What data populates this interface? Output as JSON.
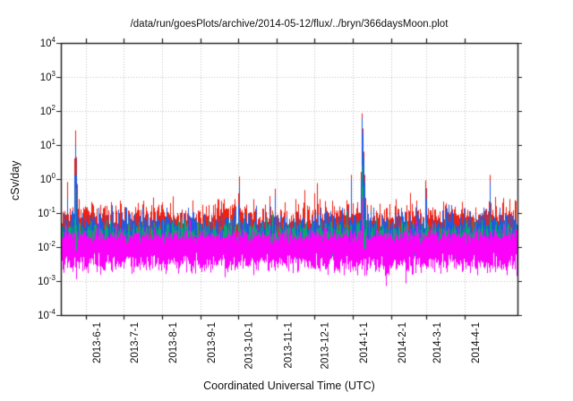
{
  "page": {
    "background": "#ffffff"
  },
  "chart_data": {
    "type": "line",
    "title": "/data/run/goesPlots/archive/2014-05-12/flux/../bryn/366daysMoon.plot",
    "xlabel": "Coordinated Universal Time (UTC)",
    "ylabel": "cSv/day",
    "background": "#ffffff",
    "border_color": "#1a1a1a",
    "grid": {
      "visible": true,
      "style": "dotted",
      "color": "#c2c2c2"
    },
    "legend": {
      "visible": false
    },
    "x_axis": {
      "start_date": "2013-05-12",
      "span_days": 366,
      "ticks": [
        {
          "label": "2013-6-1",
          "day": 20
        },
        {
          "label": "2013-7-1",
          "day": 50
        },
        {
          "label": "2013-8-1",
          "day": 81
        },
        {
          "label": "2013-9-1",
          "day": 112
        },
        {
          "label": "2013-10-1",
          "day": 142
        },
        {
          "label": "2013-11-1",
          "day": 173
        },
        {
          "label": "2013-12-1",
          "day": 203
        },
        {
          "label": "2014-1-1",
          "day": 234
        },
        {
          "label": "2014-2-1",
          "day": 265
        },
        {
          "label": "2014-3-1",
          "day": 293
        },
        {
          "label": "2014-4-1",
          "day": 324
        }
      ]
    },
    "y_axis": {
      "scale": "log10",
      "base": "10",
      "tick_exponents": [
        4,
        3,
        2,
        1,
        0,
        -1,
        -2,
        -3,
        -4
      ],
      "range_exponents": [
        -4,
        4
      ]
    },
    "series": [
      {
        "name": "red-flux",
        "color": "#ee2113",
        "baseline": {
          "top_log": -1.03,
          "top_sigma": 0.2,
          "burst_prob": 0.07,
          "burst_extra": 0.55,
          "bottom_log": -1.72,
          "bottom_sigma": 0.06
        },
        "spikes": [
          {
            "day": 5.0,
            "peak_log": -0.05,
            "rise": 1.6,
            "decay": 1.6
          },
          {
            "day": 11.2,
            "peak_log": 1.74,
            "rise": 2.6,
            "decay": 1.1
          },
          {
            "day": 40.0,
            "peak_log": -0.3,
            "rise": 2.5,
            "decay": 2.0
          },
          {
            "day": 142.5,
            "peak_log": 0.48,
            "rise": 2.2,
            "decay": 1.3
          },
          {
            "day": 167.0,
            "peak_log": -0.08,
            "rise": 2.5,
            "decay": 2.0
          },
          {
            "day": 171.5,
            "peak_log": -0.25,
            "rise": 2.5,
            "decay": 2.0
          },
          {
            "day": 176.0,
            "peak_log": -0.45,
            "rise": 2.5,
            "decay": 2.0
          },
          {
            "day": 214.0,
            "peak_log": -0.55,
            "rise": 3.0,
            "decay": 2.5
          },
          {
            "day": 232.5,
            "peak_log": 0.15,
            "rise": 2.5,
            "decay": 1.6
          },
          {
            "day": 241.2,
            "peak_log": 2.1,
            "rise": 2.4,
            "decay": 0.95
          },
          {
            "day": 285.0,
            "peak_log": -0.35,
            "rise": 3.0,
            "decay": 2.2
          },
          {
            "day": 292.3,
            "peak_log": 0.48,
            "rise": 2.4,
            "decay": 1.5
          },
          {
            "day": 322.0,
            "peak_log": -0.45,
            "rise": 3.0,
            "decay": 2.5
          },
          {
            "day": 343.5,
            "peak_log": 0.55,
            "rise": 2.6,
            "decay": 1.7
          }
        ]
      },
      {
        "name": "blue-flux",
        "color": "#1f5ae0",
        "baseline": {
          "top_log": -1.28,
          "top_sigma": 0.2,
          "burst_prob": 0.05,
          "burst_extra": 0.45,
          "bottom_log": -1.88,
          "bottom_sigma": 0.06
        },
        "spikes": [
          {
            "day": 5.0,
            "peak_log": -0.5,
            "rise": 1.8,
            "decay": 1.8
          },
          {
            "day": 11.2,
            "peak_log": 1.33,
            "rise": 2.8,
            "decay": 1.2
          },
          {
            "day": 40.0,
            "peak_log": -0.6,
            "rise": 2.6,
            "decay": 2.2
          },
          {
            "day": 142.5,
            "peak_log": 0.22,
            "rise": 2.4,
            "decay": 1.45
          },
          {
            "day": 167.0,
            "peak_log": -0.3,
            "rise": 2.6,
            "decay": 2.2
          },
          {
            "day": 171.5,
            "peak_log": -0.45,
            "rise": 2.6,
            "decay": 2.2
          },
          {
            "day": 176.0,
            "peak_log": -0.6,
            "rise": 2.6,
            "decay": 2.2
          },
          {
            "day": 232.5,
            "peak_log": 0.0,
            "rise": 2.6,
            "decay": 1.8
          },
          {
            "day": 241.2,
            "peak_log": 1.97,
            "rise": 2.5,
            "decay": 1.0
          },
          {
            "day": 285.0,
            "peak_log": -0.5,
            "rise": 3.0,
            "decay": 2.4
          },
          {
            "day": 292.3,
            "peak_log": 0.26,
            "rise": 2.5,
            "decay": 1.7
          },
          {
            "day": 343.5,
            "peak_log": 0.4,
            "rise": 2.7,
            "decay": 1.9
          }
        ]
      },
      {
        "name": "green-flux",
        "color": "#0aa86e",
        "baseline": {
          "top_log": -1.5,
          "top_sigma": 0.16,
          "burst_prob": 0.04,
          "burst_extra": 0.3,
          "bottom_log": -2.18,
          "bottom_sigma": 0.08
        },
        "spikes": [
          {
            "day": 11.2,
            "peak_log": 0.13,
            "rise": 3.0,
            "decay": 1.5
          },
          {
            "day": 142.5,
            "peak_log": -0.5,
            "rise": 3.0,
            "decay": 1.8
          },
          {
            "day": 241.2,
            "peak_log": 0.6,
            "rise": 2.8,
            "decay": 1.3
          },
          {
            "day": 292.3,
            "peak_log": -0.6,
            "rise": 3.0,
            "decay": 2.0
          },
          {
            "day": 343.5,
            "peak_log": -0.55,
            "rise": 3.0,
            "decay": 2.2
          }
        ]
      },
      {
        "name": "magenta-flux",
        "color": "#fb02fb",
        "baseline": {
          "top_log": -1.66,
          "top_sigma": 0.1,
          "burst_prob": 0.12,
          "burst_extra": 0.28,
          "bottom_log": -2.5,
          "bottom_sigma": 0.15,
          "deep_prob": 0.03,
          "deep_extra": 0.35
        },
        "spikes": [
          {
            "day": 11.2,
            "peak_log": -0.85,
            "rise": 3.5,
            "decay": 2.2
          },
          {
            "day": 241.2,
            "peak_log": -0.33,
            "rise": 3.2,
            "decay": 1.6
          }
        ],
        "down_spikes": [
          {
            "day": 11.9,
            "low_log": -3.85,
            "slope": 3.0
          },
          {
            "day": 243.4,
            "low_log": -3.2,
            "slope": 3.0
          },
          {
            "day": 260.2,
            "low_log": -4.0,
            "slope": 2.8
          },
          {
            "day": 276.2,
            "low_log": -3.35,
            "slope": 3.0
          },
          {
            "day": 365.6,
            "low_log": -3.8,
            "slope": 3.0
          }
        ],
        "gaps": [
          {
            "day": 11.9,
            "width": 1.0,
            "top_log": -2.1,
            "bottom_log": -2.35
          },
          {
            "day": 243.4,
            "width": 1.8,
            "top_log": -2.05,
            "bottom_log": -2.35
          }
        ]
      }
    ]
  }
}
